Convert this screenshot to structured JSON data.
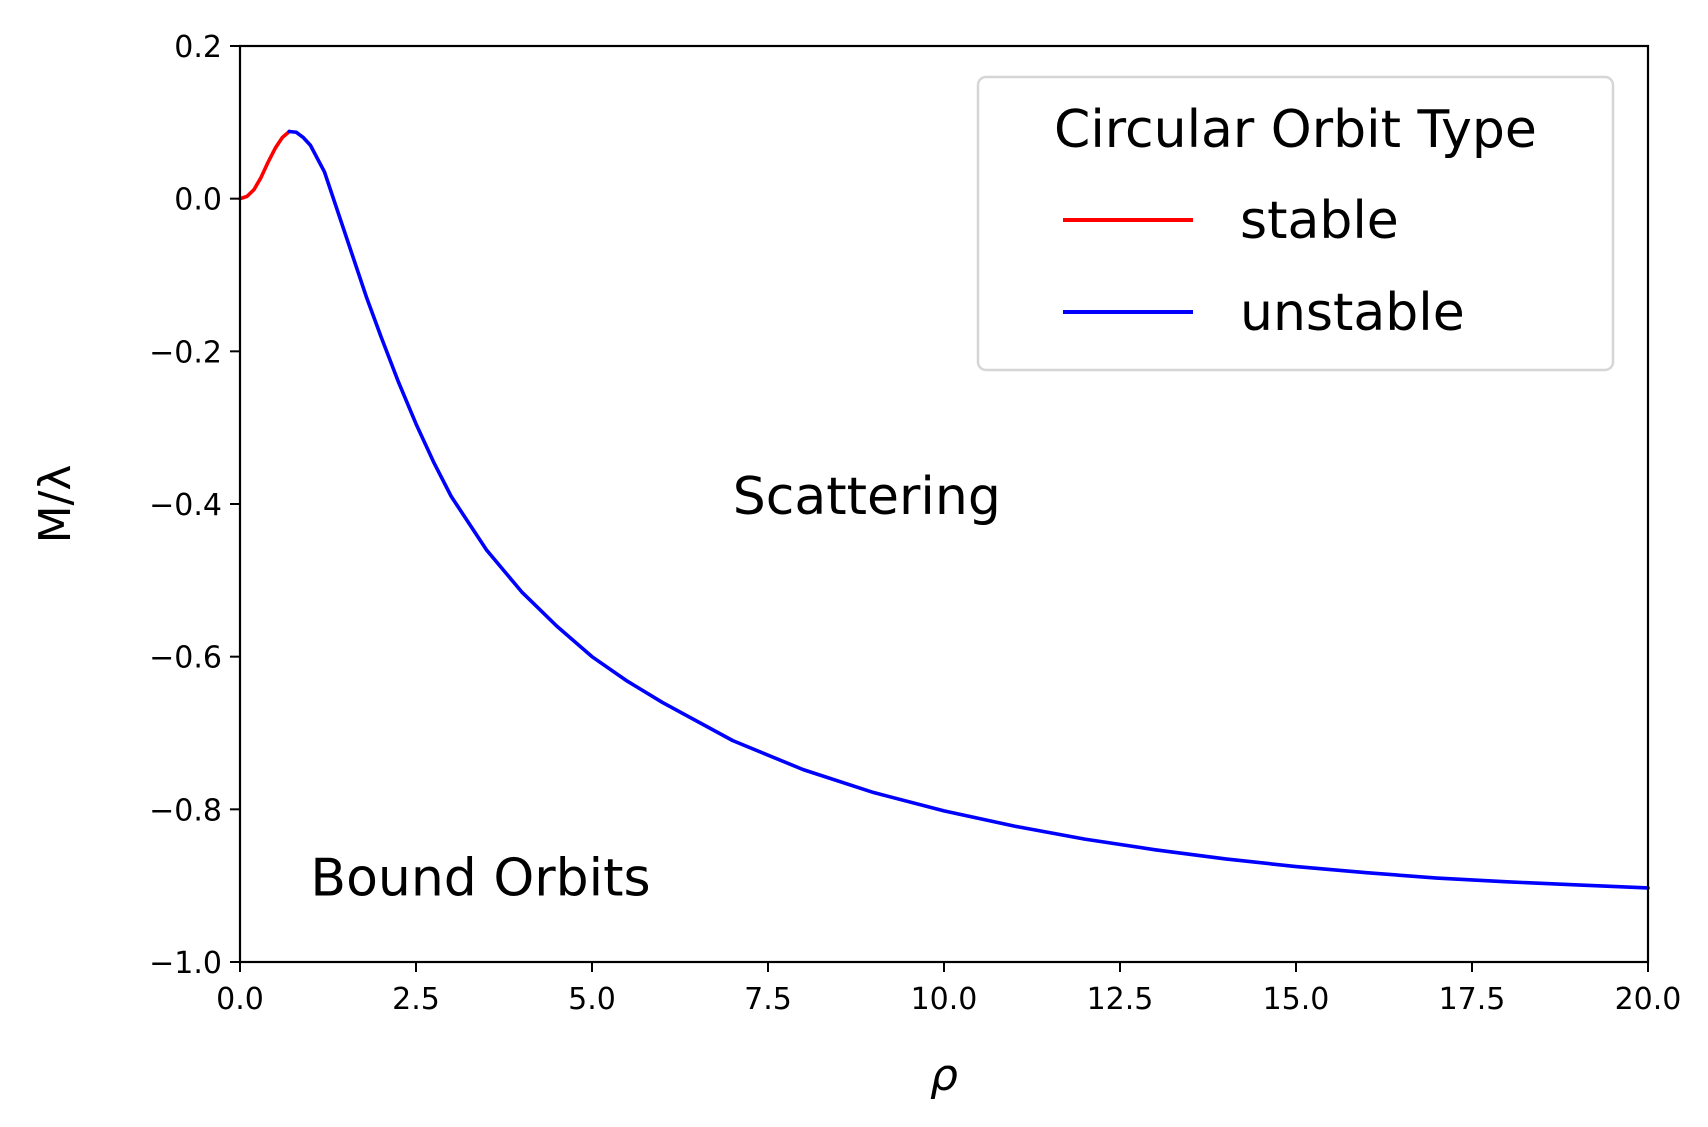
{
  "chart_data": {
    "type": "line",
    "xlabel": "ρ",
    "ylabel": "M/λ",
    "xlim": [
      0,
      20
    ],
    "ylim": [
      -1.0,
      0.2
    ],
    "xticks": [
      0.0,
      2.5,
      5.0,
      7.5,
      10.0,
      12.5,
      15.0,
      17.5,
      20.0
    ],
    "xtick_labels": [
      "0.0",
      "2.5",
      "5.0",
      "7.5",
      "10.0",
      "12.5",
      "15.0",
      "17.5",
      "20.0"
    ],
    "yticks": [
      0.2,
      0.0,
      -0.2,
      -0.4,
      -0.6,
      -0.8,
      -1.0
    ],
    "ytick_labels": [
      "0.2",
      "0.0",
      "−0.2",
      "−0.4",
      "−0.6",
      "−0.8",
      "−1.0"
    ],
    "grid": false,
    "legend": {
      "title": "Circular Orbit Type",
      "placement": "top-right"
    },
    "series": [
      {
        "name": "stable",
        "color": "#ff0000",
        "x": [
          0.0,
          0.1,
          0.2,
          0.3,
          0.4,
          0.5,
          0.6,
          0.7
        ],
        "y": [
          0.0,
          0.003,
          0.012,
          0.028,
          0.048,
          0.066,
          0.08,
          0.088
        ]
      },
      {
        "name": "unstable",
        "color": "#0000ff",
        "x": [
          0.7,
          0.8,
          0.9,
          1.0,
          1.2,
          1.4,
          1.6,
          1.8,
          2.0,
          2.25,
          2.5,
          2.75,
          3.0,
          3.5,
          4.0,
          4.5,
          5.0,
          5.5,
          6.0,
          7.0,
          8.0,
          9.0,
          10.0,
          11.0,
          12.0,
          13.0,
          14.0,
          15.0,
          16.0,
          17.0,
          18.0,
          19.0,
          20.0
        ],
        "y": [
          0.088,
          0.087,
          0.08,
          0.07,
          0.035,
          -0.02,
          -0.075,
          -0.13,
          -0.18,
          -0.24,
          -0.295,
          -0.345,
          -0.39,
          -0.46,
          -0.515,
          -0.56,
          -0.6,
          -0.632,
          -0.66,
          -0.71,
          -0.748,
          -0.778,
          -0.802,
          -0.822,
          -0.839,
          -0.853,
          -0.865,
          -0.875,
          -0.883,
          -0.89,
          -0.895,
          -0.899,
          -0.903
        ]
      }
    ],
    "annotations": [
      {
        "text": "Scattering",
        "x": 7.0,
        "y": -0.4
      },
      {
        "text": "Bound Orbits",
        "x": 1.0,
        "y": -0.9
      }
    ]
  }
}
